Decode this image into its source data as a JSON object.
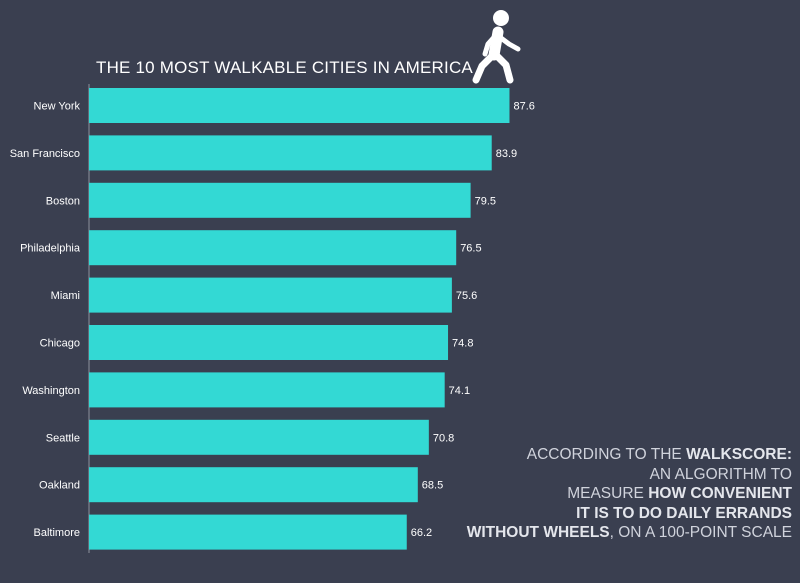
{
  "chart_data": {
    "type": "bar",
    "orientation": "horizontal",
    "title": "THE 10 MOST WALKABLE CITIES IN AMERICA",
    "categories": [
      "New York",
      "San Francisco",
      "Boston",
      "Philadelphia",
      "Miami",
      "Chicago",
      "Washington",
      "Seattle",
      "Oakland",
      "Baltimore"
    ],
    "values": [
      87.6,
      83.9,
      79.5,
      76.5,
      75.6,
      74.8,
      74.1,
      70.8,
      68.5,
      66.2
    ],
    "value_labels": [
      "87.6",
      "83.9",
      "79.5",
      "76.5",
      "75.6",
      "74.8",
      "74.1",
      "70.8",
      "68.5",
      "66.2"
    ],
    "xlim": [
      0,
      100
    ],
    "grid": false,
    "bar_color": "#33d9d4",
    "background": "#3a3f50",
    "icon": "pedestrian-walking-icon"
  },
  "annotation": {
    "line1_a": "ACCORDING TO THE ",
    "line1_b": "WALKSCORE:",
    "line2": "AN ALGORITHM TO",
    "line3_a": "MEASURE ",
    "line3_b": "HOW CONVENIENT",
    "line4": "IT IS TO DO DAILY ERRANDS",
    "line5_a": "WITHOUT WHEELS",
    "line5_b": ", ON A 100-POINT SCALE"
  }
}
